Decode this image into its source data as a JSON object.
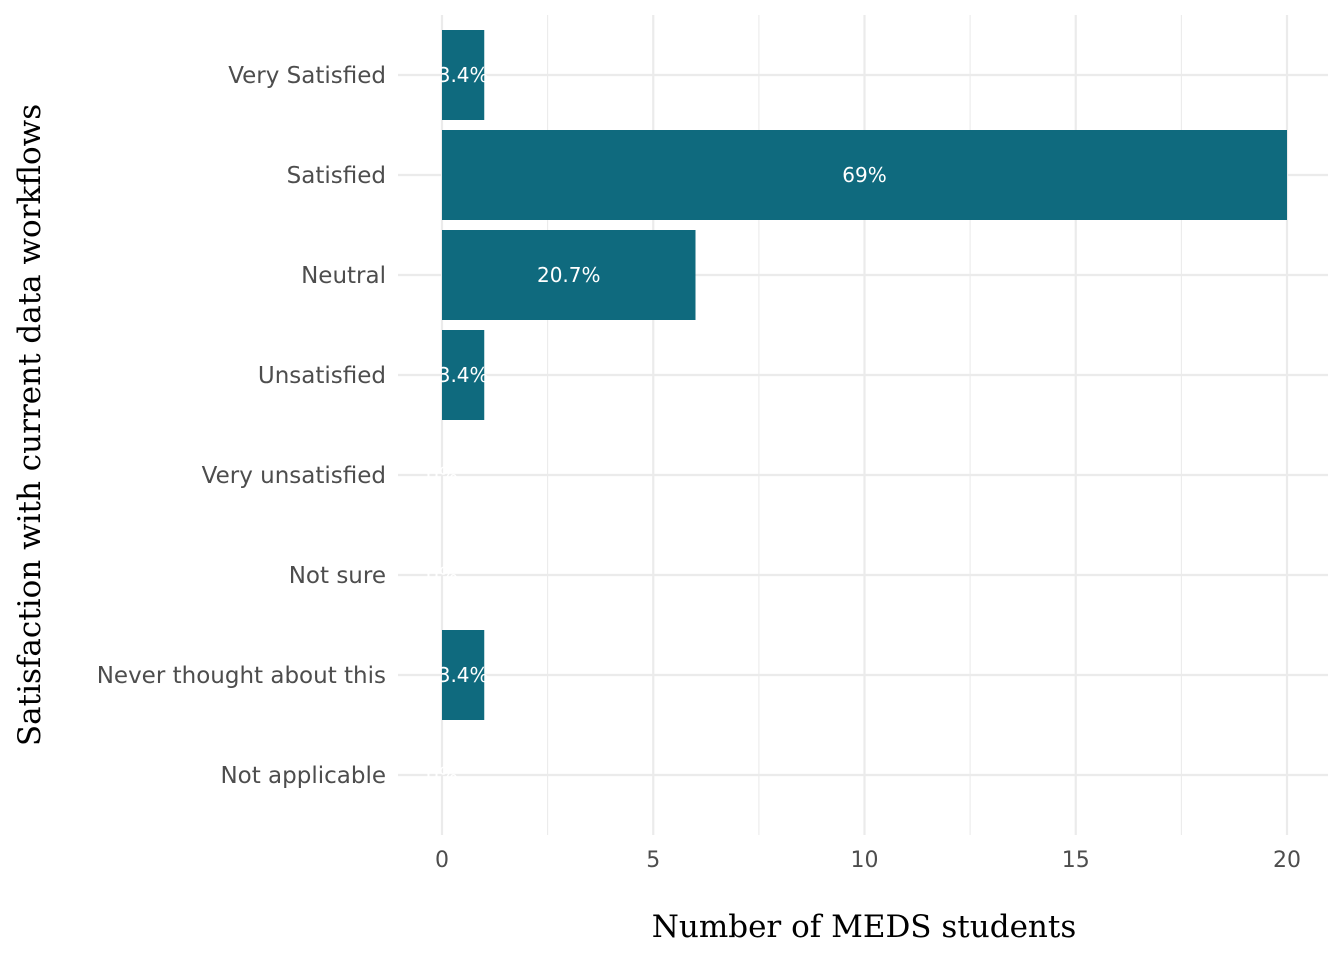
{
  "chart_data": {
    "type": "bar",
    "orientation": "horizontal",
    "categories": [
      "Very Satisfied",
      "Satisfied",
      "Neutral",
      "Unsatisfied",
      "Very unsatisfied",
      "Not sure",
      "Never thought about this",
      "Not applicable"
    ],
    "values": [
      1,
      20,
      6,
      1,
      0,
      0,
      1,
      0
    ],
    "data_labels": [
      "3.4%",
      "69%",
      "20.7%",
      "3.4%",
      "0%",
      "0%",
      "3.4%",
      "0%"
    ],
    "xlabel": "Number of MEDS students",
    "ylabel": "Satisfaction with current data workflows",
    "xlim": [
      0,
      21
    ],
    "x_ticks": [
      0,
      5,
      10,
      15,
      20
    ],
    "bar_color": "#0f6a7e",
    "grid": true,
    "legend": "none"
  }
}
